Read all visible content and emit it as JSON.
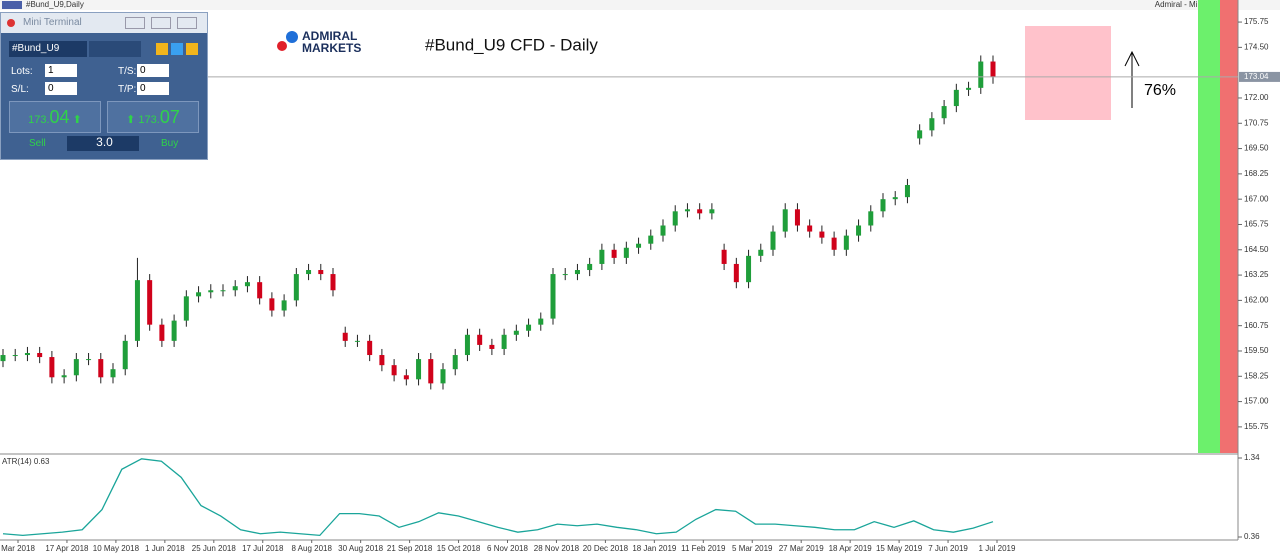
{
  "window": {
    "title": "#Bund_U9,Daily",
    "top_right": "Admiral - Mini Terminal"
  },
  "mini_terminal": {
    "title": "Mini Terminal",
    "symbol": "#Bund_U9",
    "lots_label": "Lots:",
    "lots": "1",
    "sl_label": "S/L:",
    "sl": "0",
    "ts_label": "T/S:",
    "ts": "0",
    "tp_label": "T/P:",
    "tp": "0",
    "sell_price_prefix": "173.",
    "sell_price_big": "04",
    "buy_price_prefix": "173.",
    "buy_price_big": "07",
    "sell": "Sell",
    "buy": "Buy",
    "volume": "3.0"
  },
  "logo": {
    "line1": "ADMIRAL",
    "line2": "MARKETS"
  },
  "chart_data": [
    {
      "type": "candlestick",
      "title": "#Bund_U9 CFD - Daily",
      "annotation": "76%",
      "up_color": "#1f9e3a",
      "down_color": "#d0021b",
      "xtick_labels": [
        "Mar 2018",
        "17 Apr 2018",
        "10 May 2018",
        "1 Jun 2018",
        "25 Jun 2018",
        "17 Jul 2018",
        "8 Aug 2018",
        "30 Aug 2018",
        "21 Sep 2018",
        "15 Oct 2018",
        "6 Nov 2018",
        "28 Nov 2018",
        "20 Dec 2018",
        "18 Jan 2019",
        "11 Feb 2019",
        "5 Mar 2019",
        "27 Mar 2019",
        "18 Apr 2019",
        "15 May 2019",
        "7 Jun 2019",
        "1 Jul 2019"
      ],
      "open": [
        159.0,
        159.3,
        159.3,
        159.4,
        159.2,
        158.2,
        158.3,
        159.1,
        159.1,
        158.2,
        158.6,
        160.0,
        163.0,
        160.8,
        160.0,
        161.0,
        162.2,
        162.4,
        162.5,
        162.5,
        162.7,
        162.9,
        162.1,
        161.5,
        162.0,
        163.3,
        163.5,
        163.3,
        160.4,
        160.0,
        160.0,
        159.3,
        158.8,
        158.3,
        158.1,
        159.1,
        157.9,
        158.6,
        159.3,
        160.3,
        159.8,
        159.6,
        160.3,
        160.5,
        160.8,
        161.1,
        163.3,
        163.3,
        163.5,
        163.8,
        164.5,
        164.1,
        164.6,
        164.8,
        165.2,
        165.7,
        166.4,
        166.5,
        166.3,
        164.5,
        163.8,
        162.9,
        164.2,
        164.5,
        165.4,
        166.5,
        165.7,
        165.4,
        165.1,
        164.5,
        165.2,
        165.7,
        166.4,
        167.0,
        167.1,
        170.0,
        170.4,
        171.0,
        171.6,
        172.4,
        172.5,
        173.8
      ],
      "high": [
        159.6,
        159.6,
        159.7,
        159.7,
        159.5,
        158.6,
        159.4,
        159.4,
        159.4,
        158.9,
        160.3,
        164.1,
        163.3,
        161.1,
        161.3,
        162.5,
        162.7,
        162.8,
        162.8,
        163.0,
        163.2,
        163.2,
        162.4,
        162.3,
        163.6,
        163.8,
        163.8,
        163.6,
        160.7,
        160.3,
        160.3,
        159.6,
        159.1,
        158.6,
        159.4,
        159.4,
        158.9,
        159.6,
        160.6,
        160.6,
        160.1,
        160.6,
        160.8,
        161.1,
        161.4,
        163.6,
        163.6,
        163.8,
        164.1,
        164.8,
        164.8,
        164.9,
        165.1,
        165.5,
        166.0,
        166.7,
        166.8,
        166.8,
        166.8,
        164.8,
        164.1,
        164.5,
        164.8,
        165.7,
        166.8,
        166.8,
        166.0,
        165.7,
        165.4,
        165.5,
        166.0,
        166.7,
        167.3,
        167.4,
        168.0,
        170.7,
        171.3,
        171.9,
        172.7,
        172.8,
        174.1,
        174.1
      ],
      "low": [
        158.7,
        159.0,
        159.0,
        158.9,
        157.9,
        157.9,
        158.0,
        158.8,
        157.9,
        157.9,
        158.3,
        159.7,
        160.5,
        159.7,
        159.7,
        160.7,
        161.9,
        162.1,
        162.2,
        162.2,
        162.4,
        161.8,
        161.2,
        161.2,
        161.7,
        163.0,
        163.0,
        162.2,
        159.7,
        159.7,
        159.0,
        158.5,
        158.0,
        157.8,
        157.8,
        157.6,
        157.6,
        158.3,
        159.0,
        159.5,
        159.3,
        159.3,
        160.0,
        160.2,
        160.5,
        160.8,
        163.0,
        163.0,
        163.2,
        163.5,
        163.8,
        163.8,
        164.3,
        164.5,
        164.9,
        165.4,
        166.1,
        166.0,
        166.0,
        163.5,
        162.6,
        162.6,
        163.9,
        164.2,
        165.1,
        165.4,
        165.1,
        164.8,
        164.2,
        164.2,
        164.9,
        165.4,
        166.1,
        166.7,
        166.8,
        169.7,
        170.1,
        170.7,
        171.3,
        172.1,
        172.2,
        172.7
      ],
      "close": [
        159.3,
        159.3,
        159.4,
        159.2,
        158.2,
        158.3,
        159.1,
        159.1,
        158.2,
        158.6,
        160.0,
        163.0,
        160.8,
        160.0,
        161.0,
        162.2,
        162.4,
        162.5,
        162.5,
        162.7,
        162.9,
        162.1,
        161.5,
        162.0,
        163.3,
        163.5,
        163.3,
        162.5,
        160.0,
        160.0,
        159.3,
        158.8,
        158.3,
        158.1,
        159.1,
        157.9,
        158.6,
        159.3,
        160.3,
        159.8,
        159.6,
        160.3,
        160.5,
        160.8,
        161.1,
        163.3,
        163.3,
        163.5,
        163.8,
        164.5,
        164.1,
        164.6,
        164.8,
        165.2,
        165.7,
        166.4,
        166.5,
        166.3,
        166.5,
        163.8,
        162.9,
        164.2,
        164.5,
        165.4,
        166.5,
        165.7,
        165.4,
        165.1,
        164.5,
        165.2,
        165.7,
        166.4,
        167.0,
        167.1,
        167.7,
        170.4,
        171.0,
        171.6,
        172.4,
        172.5,
        173.8,
        173.04
      ],
      "current_price": 173.04,
      "ylim": [
        154.46,
        176.84
      ],
      "yticks": [
        175.75,
        {
          "value": 174.5,
          "label": "174.50"
        },
        {
          "value": 172,
          "label": "172.00"
        },
        170.75,
        {
          "value": 169.5,
          "label": "169.50"
        },
        168.25,
        {
          "value": 167,
          "label": "167.00"
        },
        165.75,
        {
          "value": 164.5,
          "label": "164.50"
        },
        163.25,
        {
          "value": 162,
          "label": "162.00"
        },
        160.75,
        {
          "value": 159.5,
          "label": "159.50"
        },
        158.25,
        {
          "value": 157,
          "label": "157.00"
        },
        155.75
      ]
    },
    {
      "type": "line",
      "title": "ATR(14) 0.63",
      "color": "#1aa59a",
      "values": [
        0.4,
        0.38,
        0.4,
        0.42,
        0.45,
        0.7,
        1.2,
        1.33,
        1.3,
        1.1,
        0.75,
        0.62,
        0.45,
        0.4,
        0.42,
        0.4,
        0.38,
        0.65,
        0.65,
        0.62,
        0.48,
        0.55,
        0.66,
        0.62,
        0.55,
        0.48,
        0.42,
        0.45,
        0.52,
        0.5,
        0.52,
        0.48,
        0.45,
        0.4,
        0.42,
        0.58,
        0.7,
        0.68,
        0.52,
        0.52,
        0.5,
        0.48,
        0.45,
        0.45,
        0.55,
        0.48,
        0.56,
        0.45,
        0.42,
        0.47,
        0.55
      ],
      "ylim": [
        0.36,
        1.34
      ],
      "yticks": [
        1.34,
        0.36
      ]
    }
  ]
}
